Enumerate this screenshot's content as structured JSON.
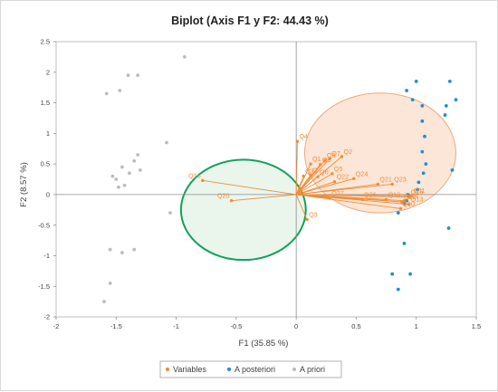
{
  "chart_data": {
    "type": "scatter",
    "title": "Biplot (Axis F1 y F2: 44.43 %)",
    "xlabel": "F1 (35.85 %)",
    "ylabel": "F2 (8.57 %)",
    "xlim": [
      -2,
      1.5
    ],
    "ylim": [
      -2,
      2.5
    ],
    "xticks": [
      "-2",
      "-1.5",
      "-1",
      "-0.5",
      "0",
      "0.5",
      "1",
      "1.5"
    ],
    "yticks": [
      "-2",
      "-1.5",
      "-1",
      "-0.5",
      "0",
      "0.5",
      "1",
      "1.5",
      "2",
      "2.5"
    ],
    "grid": false,
    "legend_position": "bottom",
    "colors": {
      "variables": "#F28C38",
      "posteriori": "#1E8FD4",
      "priori": "#BDBDBD",
      "ellipse_variables_fill": "#FBDDC9",
      "ellipse_variables_stroke": "#F2A77A",
      "ellipse_priori_fill": "#E3F1E6",
      "ellipse_priori_stroke": "#12A15A"
    },
    "legend": [
      {
        "key": "variables",
        "label": "Variables"
      },
      {
        "key": "posteriori",
        "label": "A posteriori"
      },
      {
        "key": "priori",
        "label": "A priori"
      }
    ],
    "ellipses": [
      {
        "series": "variables",
        "cx": 0.7,
        "cy": 0.68,
        "rx": 0.63,
        "ry": 0.98,
        "angle": 0
      },
      {
        "series": "priori",
        "cx": -0.44,
        "cy": -0.25,
        "rx": 0.52,
        "ry": 0.82,
        "angle": 0
      }
    ],
    "variables": [
      {
        "label": "Q4",
        "x": 0.01,
        "y": 0.87
      },
      {
        "label": "Q2",
        "x": 0.38,
        "y": 0.62
      },
      {
        "label": "Q7",
        "x": 0.28,
        "y": 0.59
      },
      {
        "label": "Q8",
        "x": 0.24,
        "y": 0.56
      },
      {
        "label": "Q1",
        "x": 0.12,
        "y": 0.5
      },
      {
        "label": "Q9",
        "x": 0.2,
        "y": 0.49
      },
      {
        "label": "Q3",
        "x": 0.06,
        "y": 0.3
      },
      {
        "label": "Q",
        "x": 0.12,
        "y": 0.32
      },
      {
        "label": "Q6",
        "x": 0.18,
        "y": 0.29
      },
      {
        "label": "Q5",
        "x": 0.3,
        "y": 0.34
      },
      {
        "label": "Q22",
        "x": 0.32,
        "y": 0.21
      },
      {
        "label": "Q24",
        "x": 0.48,
        "y": 0.26
      },
      {
        "label": "Q21",
        "x": 0.68,
        "y": 0.17
      },
      {
        "label": "Q23",
        "x": 0.8,
        "y": 0.17
      },
      {
        "label": "Q27",
        "x": 0.28,
        "y": -0.06
      },
      {
        "label": "Q26",
        "x": 0.55,
        "y": -0.08
      },
      {
        "label": "Q18",
        "x": 0.75,
        "y": -0.08
      },
      {
        "label": "Q14",
        "x": 0.9,
        "y": -0.1
      },
      {
        "label": "Q12",
        "x": 0.88,
        "y": -0.12
      },
      {
        "label": "Q13",
        "x": 0.94,
        "y": -0.16
      },
      {
        "label": "Q10",
        "x": 0.87,
        "y": -0.23
      },
      {
        "label": "Q15",
        "x": 0.94,
        "y": -0.04
      },
      {
        "label": "Q11",
        "x": 0.96,
        "y": -0.02
      },
      {
        "label": "Q16",
        "x": -0.78,
        "y": 0.23
      },
      {
        "label": "Q20",
        "x": -0.54,
        "y": -0.1
      },
      {
        "label": "Q3",
        "x": 0.09,
        "y": -0.41
      }
    ],
    "a_posteriori": [
      {
        "x": 1.0,
        "y": 1.85
      },
      {
        "x": 0.92,
        "y": 1.7
      },
      {
        "x": 1.28,
        "y": 1.85
      },
      {
        "x": 0.97,
        "y": 1.55
      },
      {
        "x": 1.05,
        "y": 1.45
      },
      {
        "x": 1.25,
        "y": 1.45
      },
      {
        "x": 1.33,
        "y": 1.55
      },
      {
        "x": 1.24,
        "y": 1.3
      },
      {
        "x": 1.05,
        "y": 1.2
      },
      {
        "x": 1.07,
        "y": 0.95
      },
      {
        "x": 1.05,
        "y": 0.7
      },
      {
        "x": 1.08,
        "y": 0.5
      },
      {
        "x": 1.3,
        "y": 0.4
      },
      {
        "x": 1.06,
        "y": 0.35
      },
      {
        "x": 1.02,
        "y": 0.2
      },
      {
        "x": 1.01,
        "y": 0.08
      },
      {
        "x": 0.93,
        "y": 0.0
      },
      {
        "x": 0.92,
        "y": -0.1
      },
      {
        "x": 0.9,
        "y": -0.15
      },
      {
        "x": 0.85,
        "y": -0.3
      },
      {
        "x": 1.27,
        "y": -0.55
      },
      {
        "x": 0.9,
        "y": -0.8
      },
      {
        "x": 0.95,
        "y": -1.3
      },
      {
        "x": 0.8,
        "y": -1.3
      },
      {
        "x": 0.85,
        "y": -1.55
      }
    ],
    "a_priori": [
      {
        "x": -0.93,
        "y": 2.25
      },
      {
        "x": -1.4,
        "y": 1.95
      },
      {
        "x": -1.32,
        "y": 1.95
      },
      {
        "x": -1.47,
        "y": 1.7
      },
      {
        "x": -1.58,
        "y": 1.65
      },
      {
        "x": -1.08,
        "y": 0.85
      },
      {
        "x": -1.32,
        "y": 0.65
      },
      {
        "x": -1.35,
        "y": 0.55
      },
      {
        "x": -1.45,
        "y": 0.45
      },
      {
        "x": -1.3,
        "y": 0.4
      },
      {
        "x": -1.39,
        "y": 0.35
      },
      {
        "x": -1.53,
        "y": 0.3
      },
      {
        "x": -1.5,
        "y": 0.25
      },
      {
        "x": -1.48,
        "y": 0.12
      },
      {
        "x": -1.43,
        "y": 0.15
      },
      {
        "x": -1.05,
        "y": -0.3
      },
      {
        "x": -1.55,
        "y": -0.9
      },
      {
        "x": -1.45,
        "y": -0.95
      },
      {
        "x": -1.35,
        "y": -0.9
      },
      {
        "x": -1.55,
        "y": -1.45
      },
      {
        "x": -1.6,
        "y": -1.75
      }
    ]
  }
}
